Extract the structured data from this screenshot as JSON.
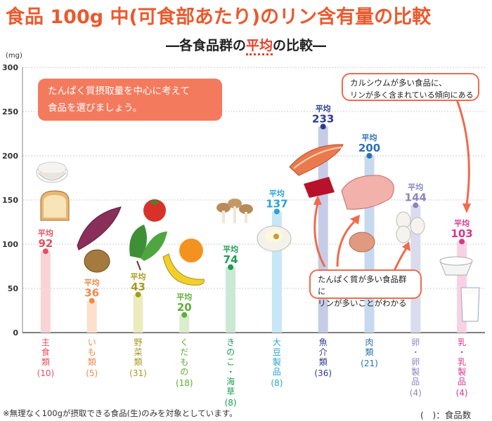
{
  "header": {
    "title": "食品 100g 中(可食部あたり)のリン含有量の比較",
    "subtitle_prefix": "―各食品群の",
    "subtitle_highlight": "平均",
    "subtitle_suffix": "の比較―"
  },
  "note": {
    "line1": "たんぱく質摂取量を中心に考えて",
    "line2": "食品を選びましょう。"
  },
  "callouts": {
    "calcium_line1": "カルシウムが多い食品に、",
    "calcium_line2": "リンが多く含まれている傾向にある",
    "protein_line1": "たんぱく質が多い食品群に",
    "protein_line2": "リンが多いことがわかる"
  },
  "footer": {
    "footnote": "※無理なく100gが摂取できる食品(生)のみを対象としています。",
    "legend": "(　)：食品数"
  },
  "chart_data": {
    "type": "bar",
    "ylabel": "(mg)",
    "ylim": [
      0,
      300
    ],
    "yticks": [
      0,
      50,
      100,
      150,
      200,
      250,
      300
    ],
    "grid": true,
    "avg_label": "平均",
    "categories": [
      "主食類",
      "いも類",
      "野菜類",
      "くだもの",
      "きのこ・海草",
      "大豆製品",
      "魚介類",
      "肉類",
      "卵・卵製品",
      "乳・乳製品"
    ],
    "counts": [
      "(10)",
      "(5)",
      "(31)",
      "(18)",
      "(8)",
      "(8)",
      "(36)",
      "(21)",
      "(4)",
      "(4)"
    ],
    "values": [
      92,
      36,
      43,
      20,
      74,
      137,
      233,
      200,
      144,
      103
    ],
    "colors": [
      "#e5505f",
      "#ee8a4a",
      "#a59a1f",
      "#5fae36",
      "#1d9c55",
      "#2aa2d8",
      "#2b3a8c",
      "#2c6fb5",
      "#8a86bd",
      "#d9368a"
    ],
    "bar_colors": [
      "#f9d3d6",
      "#fbe0cd",
      "#ecebbf",
      "#d9edcc",
      "#c9e9d5",
      "#c7e7f6",
      "#c6cce8",
      "#c6d9ef",
      "#dcdbee",
      "#f8d2e4"
    ]
  }
}
